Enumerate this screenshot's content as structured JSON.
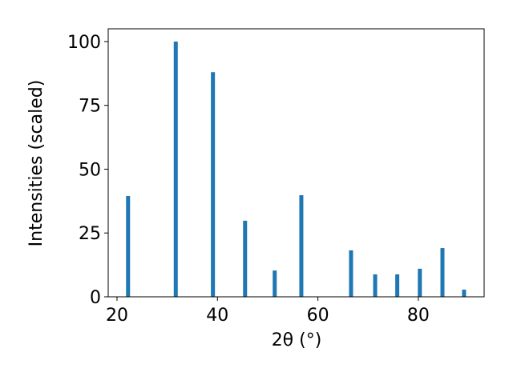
{
  "chart_data": {
    "type": "bar",
    "xlabel": "2θ (°)",
    "ylabel": "Intensities (scaled)",
    "x": [
      22.2,
      31.7,
      39.1,
      45.5,
      51.4,
      56.7,
      66.6,
      71.4,
      75.8,
      80.3,
      84.8,
      89.1
    ],
    "values": [
      39.5,
      100,
      88,
      29.8,
      10.3,
      39.8,
      18.2,
      8.8,
      8.8,
      11,
      19.1,
      2.8
    ],
    "color": "#1f77b4",
    "bar_width": 0.8,
    "xlim": [
      18.25,
      93.1
    ],
    "xticks": [
      20,
      40,
      60,
      80
    ],
    "ylim": [
      0,
      105
    ],
    "yticks": [
      0,
      25,
      50,
      75,
      100
    ]
  }
}
